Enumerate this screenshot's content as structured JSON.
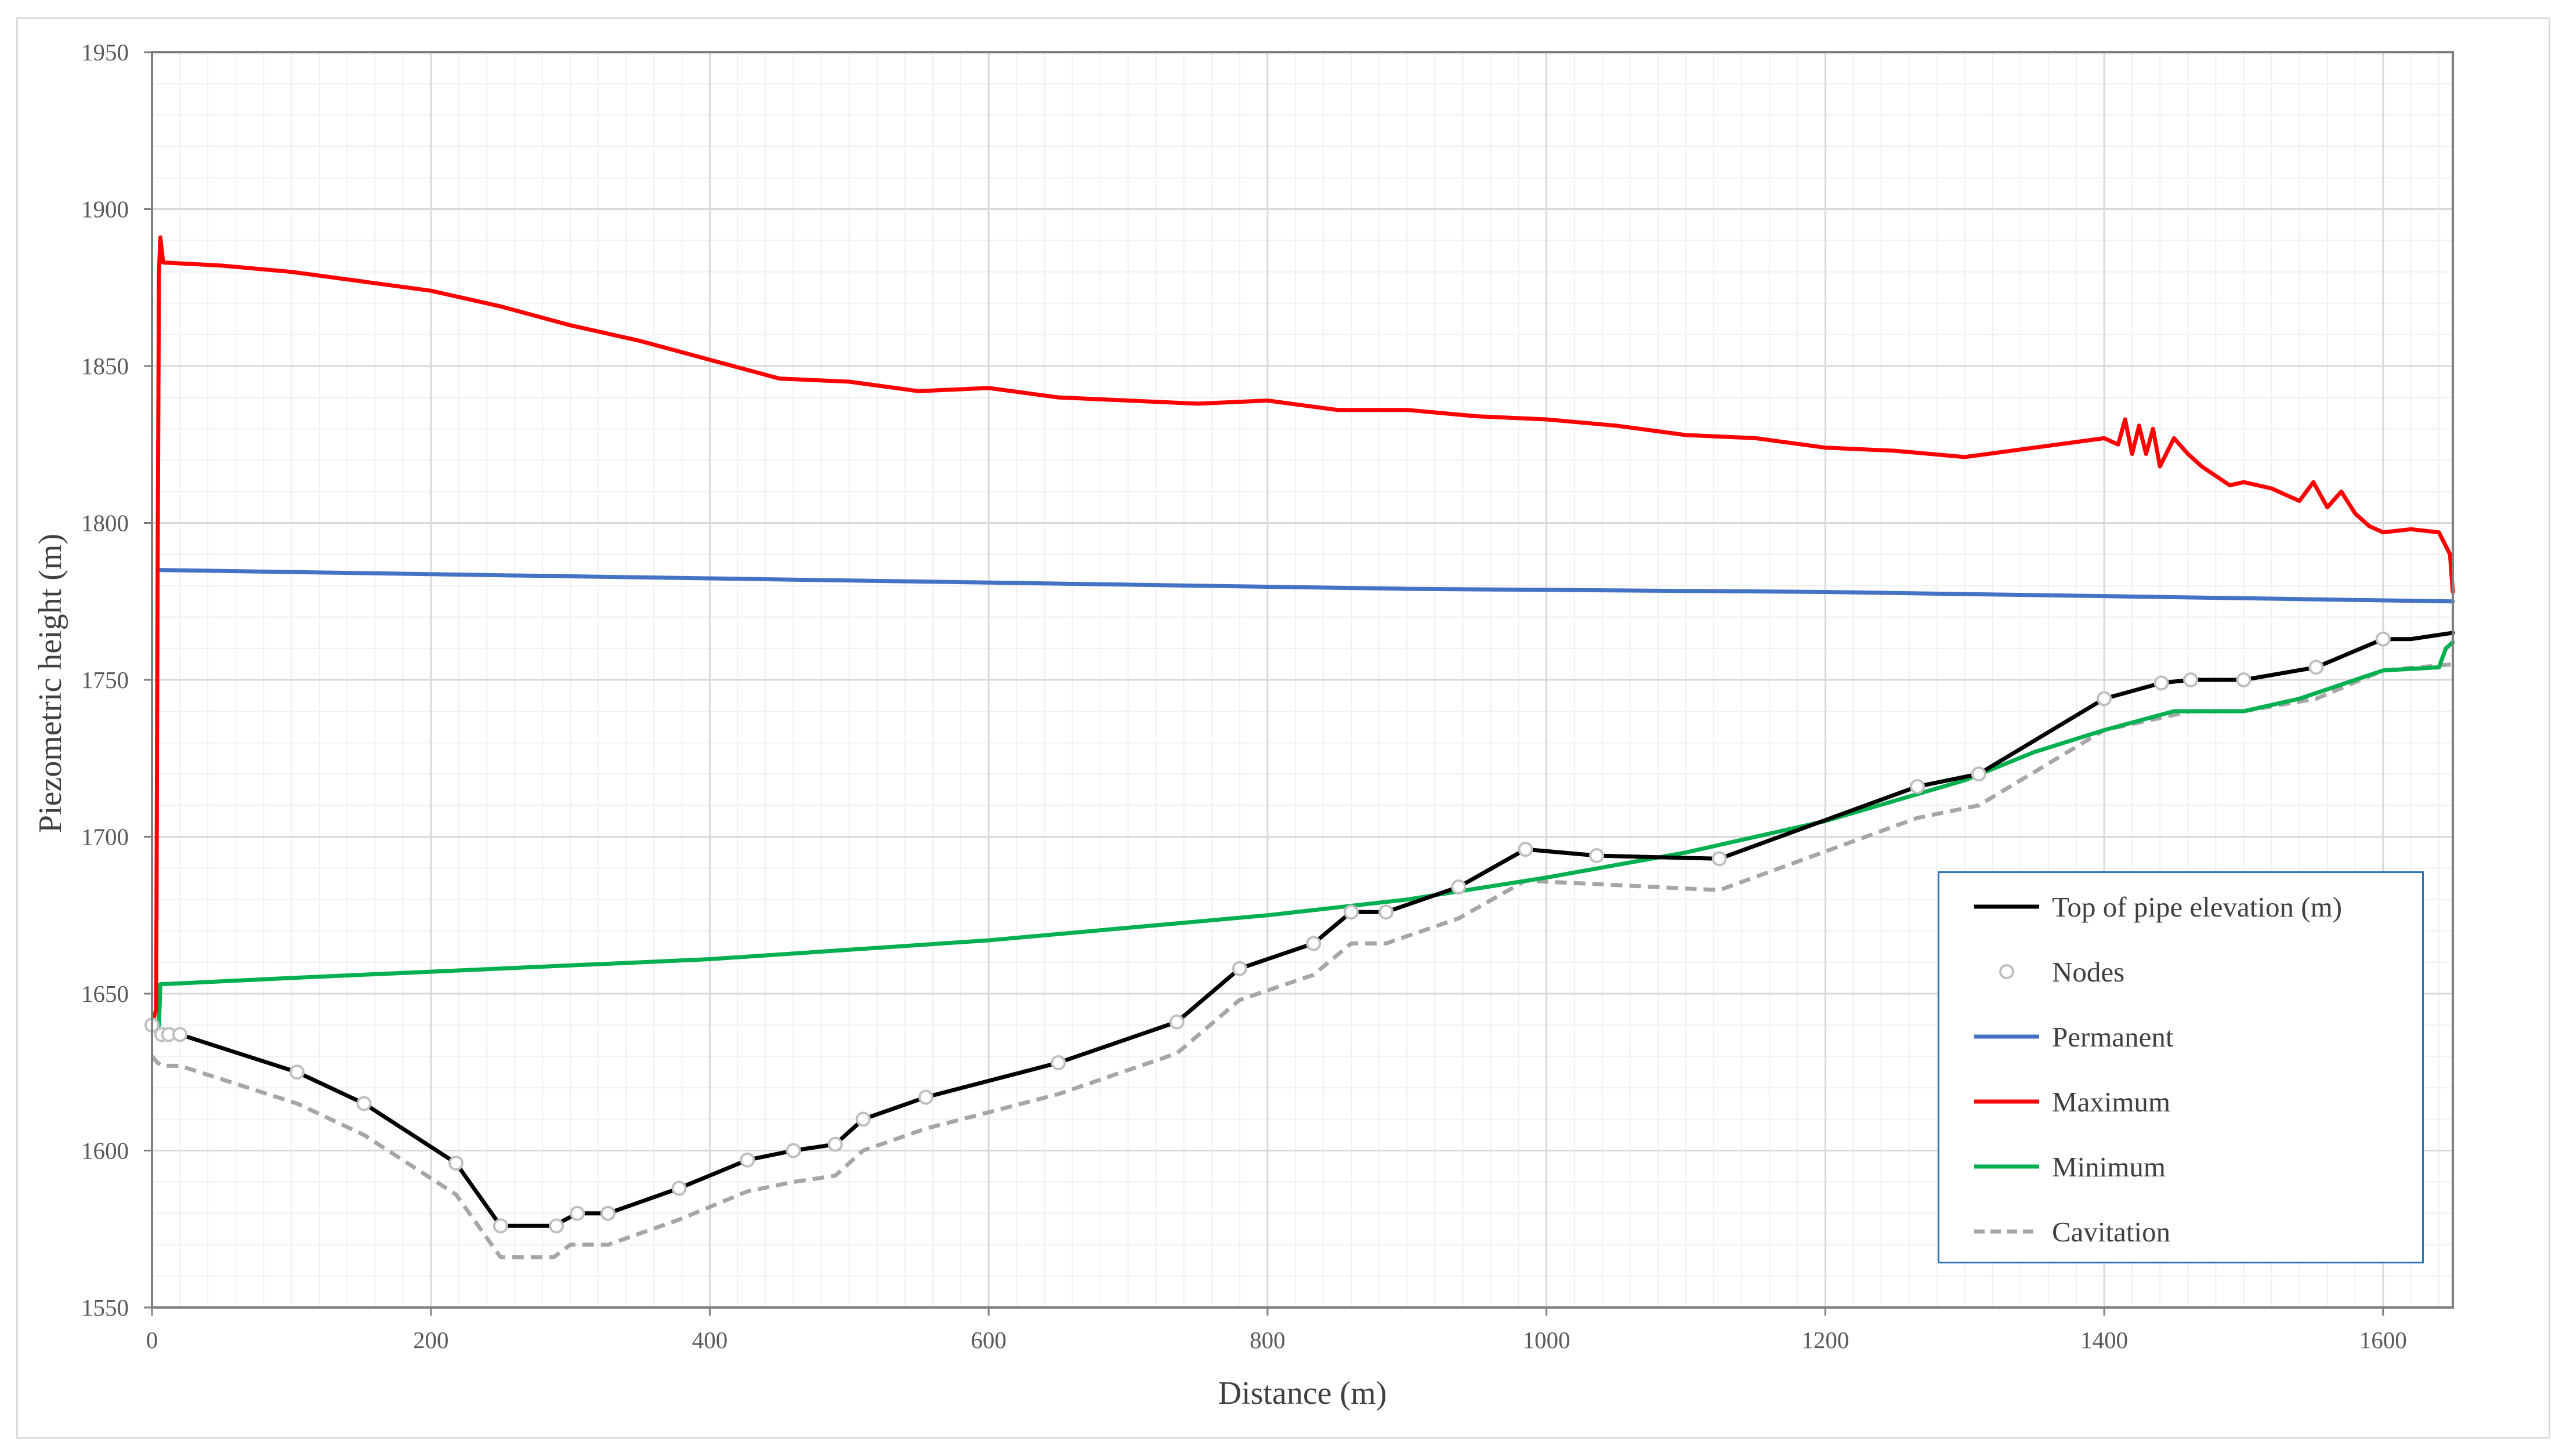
{
  "chart_data": {
    "type": "line",
    "xlabel": "Distance (m)",
    "ylabel": "Piezometric height (m)",
    "xlim": [
      0,
      1650
    ],
    "ylim": [
      1550,
      1950
    ],
    "x_ticks": [
      "0",
      "200",
      "400",
      "600",
      "800",
      "1000",
      "1200",
      "1400",
      "1600"
    ],
    "y_ticks": [
      "1550",
      "1600",
      "1650",
      "1700",
      "1750",
      "1800",
      "1850",
      "1900",
      "1950"
    ],
    "grid": true,
    "legend_position": "bottom-right",
    "series": [
      {
        "name": "Top of pipe elevation (m)",
        "color": "#000000",
        "style": "solid",
        "x": [
          0,
          3,
          7,
          12,
          20,
          104,
          152,
          218,
          250,
          272,
          288,
          305,
          327,
          378,
          427,
          460,
          490,
          510,
          555,
          650,
          735,
          780,
          833,
          860,
          885,
          937,
          985,
          1036,
          1124,
          1266,
          1310,
          1400,
          1441,
          1462,
          1500,
          1552,
          1600,
          1620,
          1650
        ],
        "values": [
          1640,
          1638,
          1637,
          1637,
          1637,
          1625,
          1615,
          1596,
          1576,
          1576,
          1576,
          1580,
          1580,
          1588,
          1597,
          1600,
          1602,
          1610,
          1617,
          1628,
          1641,
          1658,
          1666,
          1676,
          1676,
          1684,
          1696,
          1694,
          1693,
          1716,
          1720,
          1744,
          1749,
          1750,
          1750,
          1754,
          1763,
          1763,
          1765
        ]
      },
      {
        "name": "Nodes",
        "color": "#bfbfbf",
        "style": "markers",
        "x": [
          0,
          7,
          12,
          20,
          104,
          152,
          218,
          250,
          290,
          305,
          327,
          378,
          427,
          460,
          490,
          510,
          555,
          650,
          735,
          780,
          833,
          860,
          885,
          937,
          985,
          1036,
          1124,
          1266,
          1310,
          1400,
          1441,
          1462,
          1500,
          1552,
          1600
        ],
        "values": [
          1640,
          1637,
          1637,
          1637,
          1625,
          1615,
          1596,
          1576,
          1576,
          1580,
          1580,
          1588,
          1597,
          1600,
          1602,
          1610,
          1617,
          1628,
          1641,
          1658,
          1666,
          1676,
          1676,
          1684,
          1696,
          1694,
          1693,
          1716,
          1720,
          1744,
          1749,
          1750,
          1750,
          1754,
          1763
        ]
      },
      {
        "name": "Permanent",
        "color": "#4472c4",
        "style": "solid",
        "x": [
          5,
          300,
          600,
          900,
          1200,
          1500,
          1650
        ],
        "values": [
          1785,
          1783,
          1781,
          1779,
          1778,
          1776,
          1775
        ]
      },
      {
        "name": "Maximum",
        "color": "#ff0000",
        "style": "solid",
        "x": [
          0,
          3,
          4,
          5,
          6,
          8,
          50,
          100,
          150,
          200,
          250,
          300,
          350,
          400,
          450,
          500,
          550,
          600,
          650,
          700,
          750,
          800,
          850,
          900,
          950,
          1000,
          1050,
          1100,
          1150,
          1200,
          1250,
          1300,
          1350,
          1400,
          1410,
          1415,
          1420,
          1425,
          1430,
          1435,
          1440,
          1450,
          1460,
          1470,
          1480,
          1490,
          1500,
          1520,
          1540,
          1550,
          1560,
          1570,
          1580,
          1590,
          1600,
          1620,
          1640,
          1648,
          1650
        ],
        "values": [
          1640,
          1645,
          1780,
          1880,
          1891,
          1883,
          1882,
          1880,
          1877,
          1874,
          1869,
          1863,
          1858,
          1852,
          1846,
          1845,
          1842,
          1843,
          1840,
          1839,
          1838,
          1839,
          1836,
          1836,
          1834,
          1833,
          1831,
          1828,
          1827,
          1824,
          1823,
          1821,
          1824,
          1827,
          1825,
          1833,
          1822,
          1831,
          1822,
          1830,
          1818,
          1827,
          1822,
          1818,
          1815,
          1812,
          1813,
          1811,
          1807,
          1813,
          1805,
          1810,
          1803,
          1799,
          1797,
          1798,
          1797,
          1790,
          1778
        ]
      },
      {
        "name": "Minimum",
        "color": "#00b050",
        "style": "solid",
        "x": [
          0,
          3,
          5,
          6,
          100,
          200,
          300,
          400,
          500,
          600,
          700,
          800,
          900,
          1000,
          1100,
          1200,
          1300,
          1350,
          1400,
          1450,
          1500,
          1540,
          1600,
          1640,
          1645,
          1650
        ],
        "values": [
          1640,
          1638,
          1640,
          1653,
          1655,
          1657,
          1659,
          1661,
          1664,
          1667,
          1671,
          1675,
          1680,
          1687,
          1695,
          1705,
          1718,
          1727,
          1734,
          1740,
          1740,
          1744,
          1753,
          1754,
          1760,
          1762
        ]
      },
      {
        "name": "Cavitation",
        "color": "#a6a6a6",
        "style": "dashed",
        "x": [
          0,
          4,
          7,
          20,
          104,
          152,
          218,
          250,
          288,
          300,
          327,
          378,
          427,
          460,
          490,
          510,
          555,
          650,
          735,
          780,
          833,
          860,
          885,
          937,
          985,
          1124,
          1266,
          1310,
          1400,
          1462,
          1500,
          1552,
          1600,
          1650
        ],
        "values": [
          1630,
          1628,
          1627,
          1627,
          1615,
          1605,
          1586,
          1566,
          1566,
          1570,
          1570,
          1578,
          1587,
          1590,
          1592,
          1600,
          1607,
          1618,
          1631,
          1648,
          1656,
          1666,
          1666,
          1674,
          1686,
          1683,
          1706,
          1710,
          1734,
          1740,
          1740,
          1744,
          1753,
          1755
        ]
      }
    ]
  }
}
